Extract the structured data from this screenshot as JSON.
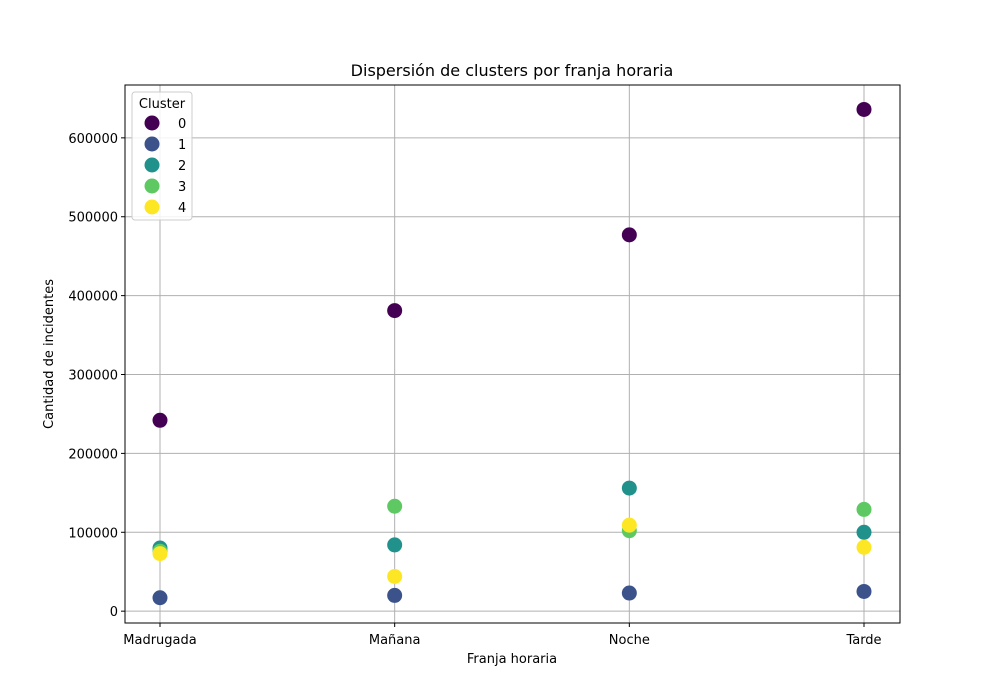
{
  "chart_data": {
    "type": "scatter",
    "title": "Dispersión de clusters por franja horaria",
    "xlabel": "Franja horaria",
    "ylabel": "Cantidad de incidentes",
    "categories": [
      "Madrugada",
      "Mañana",
      "Noche",
      "Tarde"
    ],
    "ylim": [
      -15000,
      667000
    ],
    "yticks": [
      0,
      100000,
      200000,
      300000,
      400000,
      500000,
      600000
    ],
    "grid": true,
    "legend": {
      "title": "Cluster",
      "placement": "top-left"
    },
    "series": [
      {
        "name": "0",
        "color": "#440154",
        "values": [
          242000,
          381000,
          477000,
          636000
        ]
      },
      {
        "name": "1",
        "color": "#3b528b",
        "values": [
          17000,
          20000,
          23000,
          25000
        ]
      },
      {
        "name": "2",
        "color": "#21918c",
        "values": [
          80000,
          84000,
          156000,
          100000
        ]
      },
      {
        "name": "3",
        "color": "#5ec962",
        "values": [
          76000,
          133000,
          102000,
          129000
        ]
      },
      {
        "name": "4",
        "color": "#fde725",
        "values": [
          73000,
          44000,
          109000,
          81000
        ]
      }
    ]
  }
}
